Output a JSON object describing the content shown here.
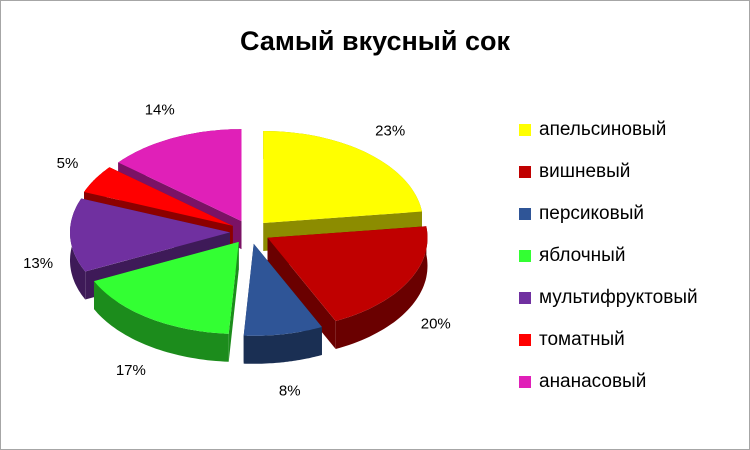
{
  "chart_data": {
    "type": "pie",
    "title": "Самый вкусный сок",
    "categories": [
      "апельсиновый",
      "вишневый",
      "персиковый",
      "яблочный",
      "мультифруктовый",
      "томатный",
      "ананасовый"
    ],
    "values": [
      23,
      20,
      8,
      17,
      13,
      5,
      14
    ],
    "value_labels": [
      "23%",
      "20%",
      "8%",
      "17%",
      "13%",
      "5%",
      "14%"
    ],
    "colors": [
      "#ffff00",
      "#c00000",
      "#2f5597",
      "#33ff33",
      "#7030a0",
      "#ff0000",
      "#e020b8"
    ],
    "legend": "right"
  }
}
